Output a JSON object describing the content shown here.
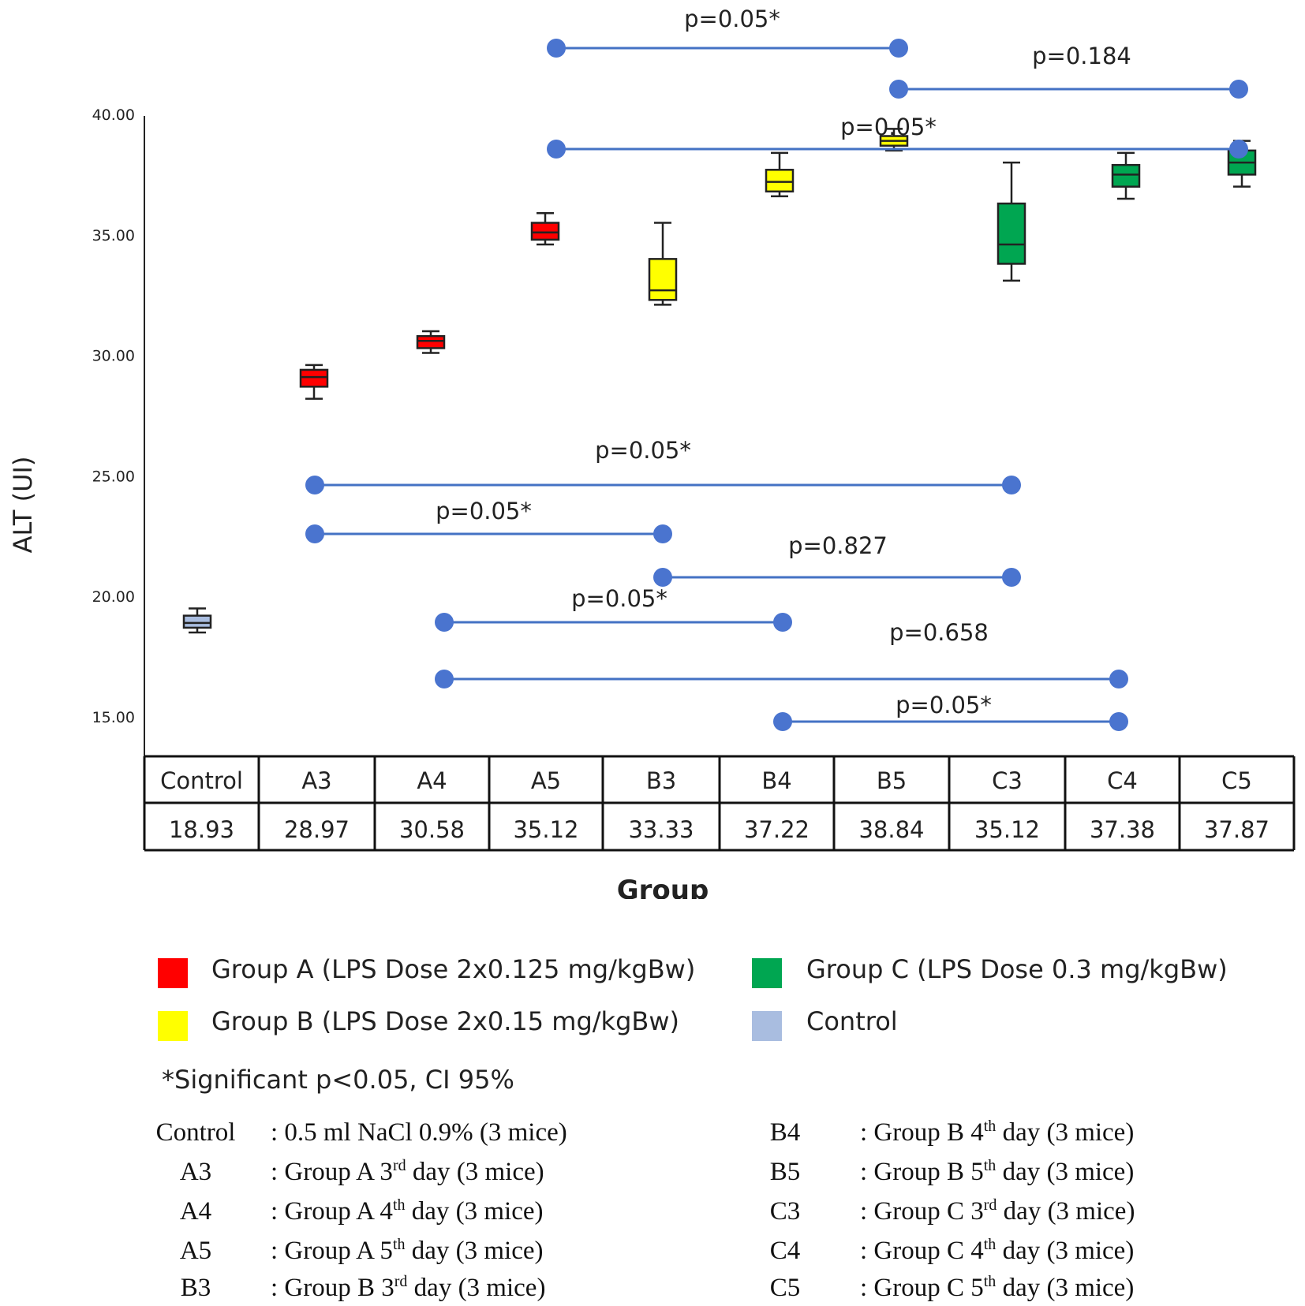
{
  "chart_data": {
    "type": "box",
    "ylabel": "ALT (UI)",
    "xlabel": "Group",
    "ylim": [
      15,
      42
    ],
    "yticks": [
      "15.00",
      "20.00",
      "25.00",
      "30.00",
      "35.00",
      "40.00"
    ],
    "colors": {
      "A": "#ff0000",
      "B": "#ffff00",
      "C": "#00a651",
      "Control": "#a9bde0",
      "comparison": "#4472c4",
      "marker": "#4a74cf"
    },
    "boxes": [
      {
        "name": "Control",
        "color": "Control",
        "min": 18.5,
        "q1": 18.7,
        "median": 18.9,
        "q3": 19.2,
        "max": 19.5
      },
      {
        "name": "A3",
        "color": "A",
        "min": 28.2,
        "q1": 28.7,
        "median": 29.1,
        "q3": 29.4,
        "max": 29.6
      },
      {
        "name": "A4",
        "color": "A",
        "min": 30.1,
        "q1": 30.3,
        "median": 30.6,
        "q3": 30.8,
        "max": 31.0
      },
      {
        "name": "A5",
        "color": "A",
        "min": 34.6,
        "q1": 34.8,
        "median": 35.1,
        "q3": 35.5,
        "max": 35.9
      },
      {
        "name": "B3",
        "color": "B",
        "min": 32.1,
        "q1": 32.3,
        "median": 32.7,
        "q3": 34.0,
        "max": 35.5
      },
      {
        "name": "B4",
        "color": "B",
        "min": 36.6,
        "q1": 36.8,
        "median": 37.2,
        "q3": 37.7,
        "max": 38.4
      },
      {
        "name": "B5",
        "color": "B",
        "min": 38.5,
        "q1": 38.7,
        "median": 38.9,
        "q3": 39.1,
        "max": 39.4
      },
      {
        "name": "C3",
        "color": "C",
        "min": 33.1,
        "q1": 33.8,
        "median": 34.6,
        "q3": 36.3,
        "max": 38.0
      },
      {
        "name": "C4",
        "color": "C",
        "min": 36.5,
        "q1": 37.0,
        "median": 37.5,
        "q3": 37.9,
        "max": 38.4
      },
      {
        "name": "C5",
        "color": "C",
        "min": 37.0,
        "q1": 37.5,
        "median": 38.0,
        "q3": 38.5,
        "max": 38.9
      }
    ],
    "table": {
      "headers": [
        "Control",
        "A3",
        "A4",
        "A5",
        "B3",
        "B4",
        "B5",
        "C3",
        "C4",
        "C5"
      ],
      "values": [
        "18.93",
        "28.97",
        "30.58",
        "35.12",
        "33.33",
        "37.22",
        "38.84",
        "35.12",
        "37.38",
        "37.87"
      ]
    },
    "comparisons": [
      {
        "from": "A5",
        "to": "B5",
        "label": "p=0.05*"
      },
      {
        "from": "B5",
        "to": "C5",
        "label": "p=0.184"
      },
      {
        "from": "A5",
        "to": "C5",
        "label": "p=0.05*"
      },
      {
        "from": "A3",
        "to": "C3",
        "label": "p=0.05*"
      },
      {
        "from": "A3",
        "to": "B3",
        "label": "p=0.05*"
      },
      {
        "from": "B3",
        "to": "C3",
        "label": "p=0.827"
      },
      {
        "from": "A4",
        "to": "B4",
        "label": "p=0.05*"
      },
      {
        "from": "A4",
        "to": "C4",
        "label": "p=0.658"
      },
      {
        "from": "B4",
        "to": "C4",
        "label": "p=0.05*"
      }
    ],
    "legend": [
      {
        "color": "A",
        "label": "Group A (LPS Dose 2x0.125 mg/kgBw)"
      },
      {
        "color": "C",
        "label": "Group C (LPS Dose 0.3 mg/kgBw)"
      },
      {
        "color": "B",
        "label": "Group  B (LPS Dose 2x0.15 mg/kgBw)"
      },
      {
        "color": "Control",
        "label": "Control"
      }
    ],
    "note": "*Significant p<0.05, CI 95%"
  },
  "definitions": [
    {
      "code": "Control",
      "text": ": 0.5 ml NaCl 0.9% (3 mice)"
    },
    {
      "code": "A3",
      "pre": ": Group A 3",
      "sup": "rd",
      "post": " day (3 mice)"
    },
    {
      "code": "A4",
      "pre": ": Group A 4",
      "sup": "th",
      "post": " day (3 mice)"
    },
    {
      "code": "A5",
      "pre": ": Group A 5",
      "sup": "th",
      "post": " day (3 mice)"
    },
    {
      "code": "B3",
      "pre": ": Group B 3",
      "sup": "rd",
      "post": " day (3 mice)"
    },
    {
      "code": "B4",
      "pre": ": Group B 4",
      "sup": "th",
      "post": " day (3 mice)"
    },
    {
      "code": "B5",
      "pre": ": Group B 5",
      "sup": "th",
      "post": " day (3 mice)"
    },
    {
      "code": "C3",
      "pre": ": Group C 3",
      "sup": "rd",
      "post": " day (3 mice)"
    },
    {
      "code": "C4",
      "pre": ": Group C 4",
      "sup": "th",
      "post": " day (3 mice)"
    },
    {
      "code": "C5",
      "pre": ": Group C 5",
      "sup": "th",
      "post": " day (3 mice)"
    }
  ]
}
